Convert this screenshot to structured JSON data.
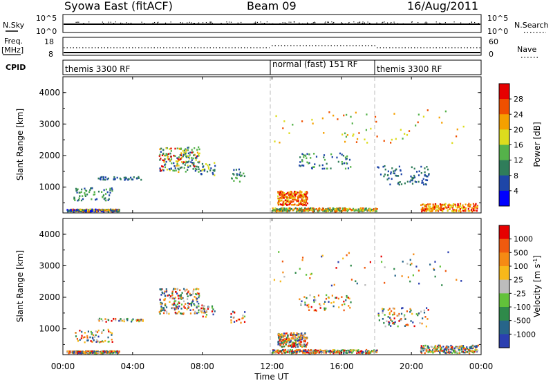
{
  "header": {
    "station": "Syowa East (fitACF)",
    "beam": "Beam 09",
    "date": "16/Aug/2011"
  },
  "noise_panel": {
    "left_label": "N.Sky",
    "left_ticks": [
      "10^5",
      "10^0"
    ],
    "right_ticks": [
      "10^5",
      "10^0"
    ],
    "right_label": "N.Search"
  },
  "freq_panel": {
    "left_label_1": "Freq.",
    "left_label_2": "[MHz]",
    "left_ticks": [
      "18",
      "8"
    ],
    "right_ticks": [
      "60",
      "0"
    ],
    "right_label": "Nave"
  },
  "cpid_panel": {
    "label": "CPID",
    "programs": [
      {
        "name": "themis 3300 RF",
        "start_hour": 0,
        "end_hour": 12
      },
      {
        "name": "normal (fast) 151 RF",
        "start_hour": 12,
        "end_hour": 18
      },
      {
        "name": "themis 3300 RF",
        "start_hour": 18,
        "end_hour": 24
      }
    ]
  },
  "x_axis": {
    "label": "Time UT",
    "ticks": [
      "00:00",
      "04:00",
      "08:00",
      "12:00",
      "16:00",
      "20:00",
      "00:00"
    ]
  },
  "chart_data": [
    {
      "type": "heatmap",
      "title": "",
      "xlabel": "Time UT",
      "ylabel": "Slant Range [km]",
      "xlim": [
        0,
        24
      ],
      "ylim": [
        180,
        4500
      ],
      "yticks": [
        "1000",
        "2000",
        "3000",
        "4000"
      ],
      "colorbar": {
        "label": "Power [dB]",
        "ticks": [
          "4",
          "8",
          "12",
          "16",
          "20",
          "24",
          "28"
        ],
        "colors": [
          "#0000ff",
          "#1e46a8",
          "#2f7d5a",
          "#55b24a",
          "#dcdc1e",
          "#f5a000",
          "#f05000",
          "#e60000"
        ]
      }
    },
    {
      "type": "heatmap",
      "title": "",
      "xlabel": "Time UT",
      "ylabel": "Slant Range [km]",
      "xlim": [
        0,
        24
      ],
      "ylim": [
        180,
        4500
      ],
      "yticks": [
        "1000",
        "2000",
        "3000",
        "4000"
      ],
      "colorbar": {
        "label": "Velocity",
        "unit_prefix": "[m s",
        "unit_exp": "-1",
        "unit_suffix": "]",
        "ticks": [
          "1000",
          "500",
          "100",
          "25",
          "-25",
          "-100",
          "-500",
          "-1000"
        ],
        "colors": [
          "#2b3fb0",
          "#27658a",
          "#2f8a4a",
          "#62c23a",
          "#bcbcbc",
          "#f7b81a",
          "#f58a14",
          "#f05a0f",
          "#e60000"
        ]
      }
    }
  ]
}
